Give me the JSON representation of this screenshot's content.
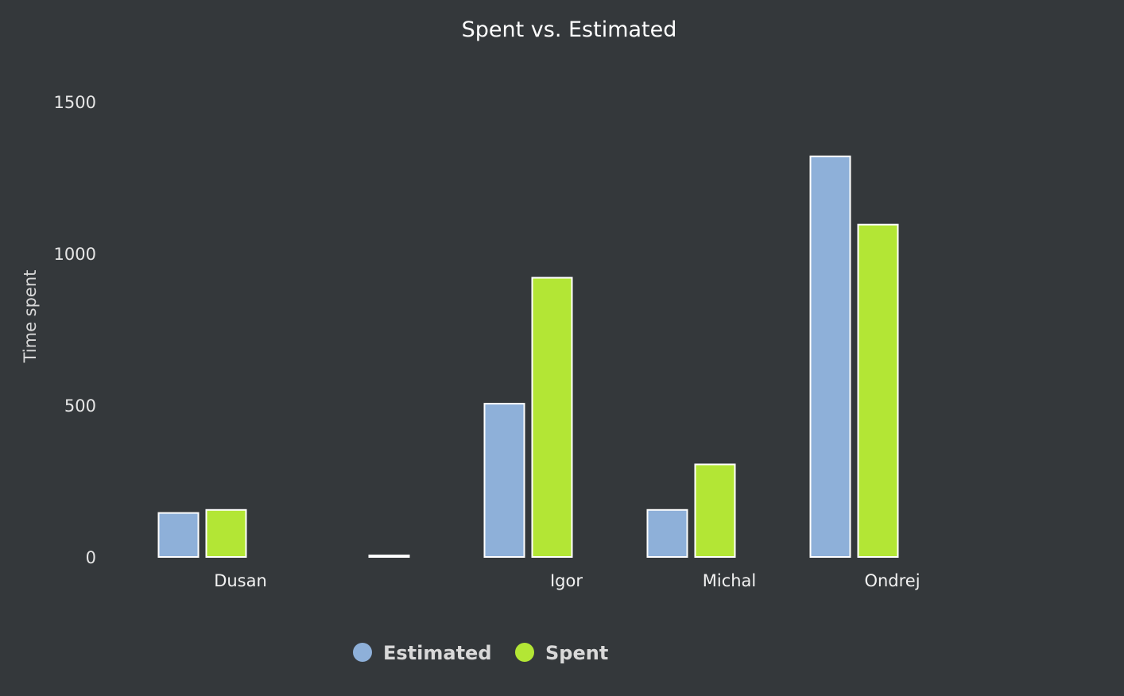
{
  "chart_data": {
    "type": "bar",
    "title": "Spent vs. Estimated",
    "ylabel": "Time spent",
    "xlabel": "",
    "ylim": [
      0,
      1500
    ],
    "yticks": [
      0,
      500,
      1000,
      1500
    ],
    "grid": false,
    "legend_position": "bottom",
    "categories": [
      "Dusan",
      "",
      "Igor",
      "Michal",
      "Ondrej"
    ],
    "series": [
      {
        "name": "Estimated",
        "color": "#8eb0d9",
        "values": [
          145,
          0,
          505,
          155,
          1320
        ]
      },
      {
        "name": "Spent",
        "color": "#b3e635",
        "values": [
          155,
          5,
          920,
          305,
          1095
        ]
      }
    ]
  }
}
